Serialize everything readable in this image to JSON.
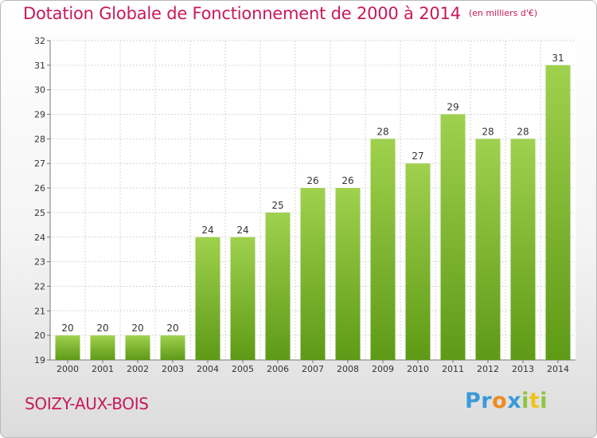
{
  "header": {
    "title": "Dotation Globale de Fonctionnement de 2000 à 2014",
    "unit_note": "(en milliers d'€)"
  },
  "footer": {
    "commune": "SOIZY-AUX-BOIS",
    "logo": {
      "letters": [
        "P",
        "r",
        "o",
        "x",
        "i",
        "t",
        "i"
      ],
      "colors": [
        "#3a9ad9",
        "#3a9ad9",
        "#f08a1e",
        "#3a9ad9",
        "#8cc63f",
        "#f0c419",
        "#8cc63f"
      ]
    }
  },
  "chart_data": {
    "type": "bar",
    "categories": [
      "2000",
      "2001",
      "2002",
      "2003",
      "2004",
      "2005",
      "2006",
      "2007",
      "2008",
      "2009",
      "2010",
      "2011",
      "2012",
      "2013",
      "2014"
    ],
    "values": [
      20,
      20,
      20,
      20,
      24,
      24,
      25,
      26,
      26,
      28,
      27,
      29,
      28,
      28,
      31
    ],
    "data_labels": [
      "20",
      "20",
      "20",
      "20",
      "24",
      "24",
      "25",
      "26",
      "26",
      "28",
      "27",
      "29",
      "28",
      "28",
      "31"
    ],
    "yticks": [
      "19",
      "20",
      "21",
      "22",
      "23",
      "24",
      "25",
      "26",
      "27",
      "28",
      "29",
      "30",
      "31",
      "32"
    ],
    "ylim": [
      19,
      32
    ],
    "grid": true,
    "bar_color": "#7cb82f",
    "bar_color_light": "#9fd14e",
    "title_color": "#c8195a"
  }
}
